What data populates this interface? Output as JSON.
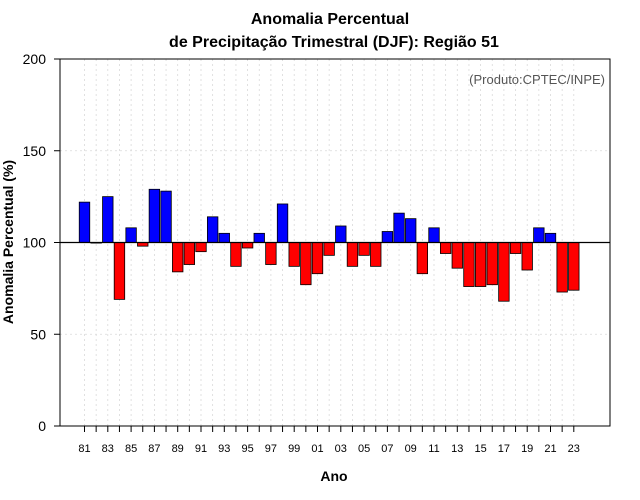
{
  "chart_data": {
    "type": "bar",
    "title": "Anomalia Percentual",
    "subtitle": "de Precipitação Trimestral (DJF): Região 51",
    "xlabel": "Ano",
    "ylabel": "Anomalia Percentual (%)",
    "annotation": "(Produto:CPTEC/INPE)",
    "ylim": [
      0,
      200
    ],
    "yticks": [
      0,
      50,
      100,
      150,
      200
    ],
    "baseline": 100,
    "xtick_labels": [
      "81",
      "83",
      "85",
      "87",
      "89",
      "91",
      "93",
      "95",
      "97",
      "99",
      "01",
      "03",
      "05",
      "07",
      "09",
      "11",
      "13",
      "15",
      "17",
      "19",
      "21",
      "23"
    ],
    "categories": [
      "1981",
      "1982",
      "1983",
      "1984",
      "1985",
      "1986",
      "1987",
      "1988",
      "1989",
      "1990",
      "1991",
      "1992",
      "1993",
      "1994",
      "1995",
      "1996",
      "1997",
      "1998",
      "1999",
      "2000",
      "2001",
      "2002",
      "2003",
      "2004",
      "2005",
      "2006",
      "2007",
      "2008",
      "2009",
      "2010",
      "2011",
      "2012",
      "2013",
      "2014",
      "2015",
      "2016",
      "2017",
      "2018",
      "2019",
      "2020",
      "2021",
      "2022",
      "2023"
    ],
    "values": [
      122,
      100,
      125,
      69,
      108,
      98,
      129,
      128,
      84,
      88,
      95,
      114,
      105,
      87,
      97,
      105,
      88,
      121,
      87,
      77,
      83,
      93,
      109,
      87,
      93,
      87,
      106,
      116,
      113,
      83,
      108,
      94,
      86,
      76,
      76,
      77,
      68,
      94,
      85,
      108,
      105,
      73,
      74
    ],
    "colors": {
      "above": "#0000ff",
      "below": "#ff0000",
      "axis": "#000000",
      "grid": "#d9d9d9"
    }
  }
}
